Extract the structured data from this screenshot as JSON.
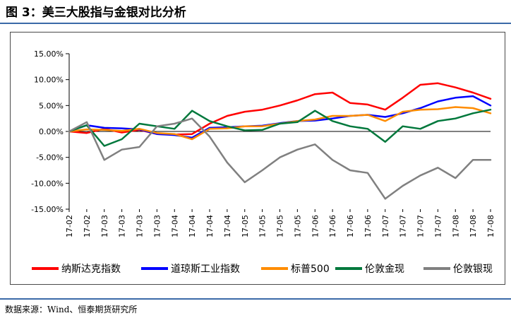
{
  "figure_title": "图 3：美三大股指与金银对比分析",
  "source_note": "数据来源：Wind、恒泰期货研究所",
  "chart_data": {
    "type": "line",
    "title": "",
    "xlabel": "",
    "ylabel": "",
    "ylim": [
      -15,
      15
    ],
    "y_ticks": [
      15,
      10,
      5,
      0,
      -5,
      -10,
      -15
    ],
    "y_tick_labels": [
      "15.00%",
      "10.00%",
      "5.00%",
      "0.00%",
      "-5.00%",
      "-10.00%",
      "-15.00%"
    ],
    "x_tick_labels": [
      "17-02",
      "17-02",
      "17-03",
      "17-03",
      "17-03",
      "17-03",
      "17-04",
      "17-04",
      "17-04",
      "17-04",
      "17-05",
      "17-05",
      "17-05",
      "17-05",
      "17-06",
      "17-06",
      "17-06",
      "17-06",
      "17-07",
      "17-07",
      "17-07",
      "17-07",
      "17-08",
      "17-08",
      "17-08"
    ],
    "grid": false,
    "legend_position": "bottom",
    "x": [
      0,
      1,
      2,
      3,
      4,
      5,
      6,
      7,
      8,
      9,
      10,
      11,
      12,
      13,
      14,
      15,
      16,
      17,
      18,
      19,
      20,
      21,
      22,
      23,
      24
    ],
    "series": [
      {
        "name": "纳斯达克指数",
        "color": "#ff0000",
        "values": [
          0,
          -0.3,
          0.5,
          -0.2,
          0.3,
          -0.5,
          -0.6,
          -0.5,
          1.5,
          3,
          3.8,
          4.2,
          5,
          6,
          7.2,
          7.5,
          5.5,
          5.2,
          4.2,
          6.5,
          9,
          9.3,
          8.5,
          7.5,
          6.3
        ]
      },
      {
        "name": "道琼斯工业指数",
        "color": "#0000ff",
        "values": [
          0,
          1.2,
          0.7,
          0.6,
          0.4,
          -0.5,
          -0.7,
          -1.2,
          0.7,
          0.8,
          1,
          1.1,
          1.6,
          2,
          2.1,
          2.5,
          3,
          3.2,
          2.8,
          3.5,
          4.5,
          5.8,
          6.5,
          6.8,
          5
        ]
      },
      {
        "name": "标普500",
        "color": "#ff8c00",
        "values": [
          0,
          0.4,
          0.3,
          0.1,
          0.5,
          -0.3,
          -0.5,
          -1.5,
          0.5,
          0.6,
          1,
          1,
          1.5,
          2,
          2.3,
          3,
          3,
          3.2,
          2,
          3.8,
          4.2,
          4.3,
          4.7,
          4.5,
          3.5
        ]
      },
      {
        "name": "伦敦金现",
        "color": "#00783c",
        "values": [
          0,
          1.2,
          -2.8,
          -1.5,
          1.5,
          1,
          0.5,
          4,
          2,
          1,
          0.2,
          0.3,
          1.5,
          1.8,
          4,
          2,
          1,
          0.5,
          -2,
          1,
          0.5,
          2,
          2.5,
          3.5,
          4.2
        ]
      },
      {
        "name": "伦敦银现",
        "color": "#808080",
        "values": [
          0,
          1.8,
          -5.5,
          -3.5,
          -3,
          1,
          1.5,
          2.5,
          -1,
          -6,
          -9.8,
          -7.5,
          -5,
          -3.5,
          -2.5,
          -5.5,
          -7.5,
          -8,
          -13,
          -10.5,
          -8.5,
          -7,
          -9,
          -5.5,
          -5.5
        ]
      }
    ]
  }
}
